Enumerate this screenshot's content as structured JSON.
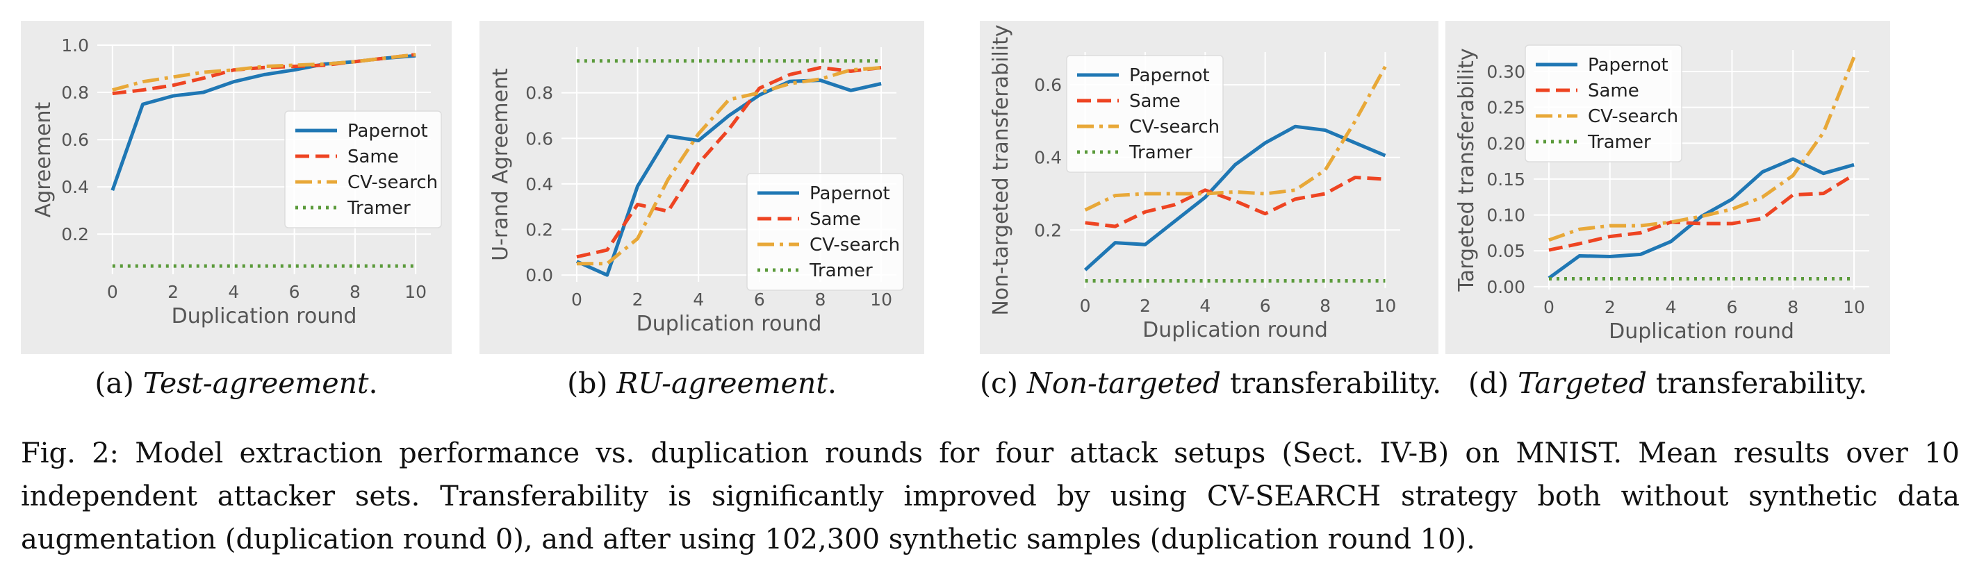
{
  "colors": {
    "panel_bg": "#ebebeb",
    "grid": "#ffffff",
    "text": "#555555",
    "Papernot": "#1f77b4",
    "Same": "#ee4422",
    "CV-search": "#e8a838",
    "Tramer": "#5a9a3a"
  },
  "captions": [
    {
      "letter": "(a)",
      "emph": "Test-agreement",
      "rest": "."
    },
    {
      "letter": "(b)",
      "emph": "RU-agreement",
      "rest": "."
    },
    {
      "letter": "(c)",
      "emph": "Non-targeted",
      "rest": " transferability."
    },
    {
      "letter": "(d)",
      "emph": "Targeted",
      "rest": " transferability."
    }
  ],
  "figure_caption": "Fig. 2: Model extraction performance vs. duplication rounds for four attack setups (Sect. IV-B) on MNIST. Mean results over 10 independent attacker sets. Transferability is significantly improved by using CV-SEARCH strategy both without synthetic data augmentation (duplication round 0), and after using 102,300 synthetic samples (duplication round 10).",
  "chart_data": [
    {
      "type": "line",
      "xlabel": "Duplication round",
      "ylabel": "Agreement",
      "x": [
        0,
        1,
        2,
        3,
        4,
        5,
        6,
        7,
        8,
        9,
        10
      ],
      "xticks": [
        0,
        2,
        4,
        6,
        8,
        10
      ],
      "xticklabels": [
        "0",
        "2",
        "4",
        "6",
        "8",
        "10"
      ],
      "yticks": [
        0.2,
        0.4,
        0.6,
        0.8,
        1.0
      ],
      "yticklabels": [
        "0.2",
        "0.4",
        "0.6",
        "0.8",
        "1.0"
      ],
      "xlim": [
        -0.5,
        10.5
      ],
      "ylim": [
        0.03,
        1.0
      ],
      "grid": true,
      "legend_position": "center-right",
      "series": [
        {
          "name": "Papernot",
          "style": "solid",
          "values": [
            0.385,
            0.75,
            0.785,
            0.8,
            0.845,
            0.875,
            0.895,
            0.92,
            0.93,
            0.945,
            0.955
          ]
        },
        {
          "name": "Same",
          "style": "dashed",
          "values": [
            0.795,
            0.81,
            0.83,
            0.86,
            0.895,
            0.905,
            0.91,
            0.915,
            0.93,
            0.945,
            0.96
          ]
        },
        {
          "name": "CV-search",
          "style": "dashdot",
          "values": [
            0.81,
            0.845,
            0.865,
            0.885,
            0.895,
            0.91,
            0.915,
            0.92,
            0.93,
            0.945,
            0.96
          ]
        },
        {
          "name": "Tramer",
          "style": "dotted",
          "values": [
            0.065,
            0.065,
            0.065,
            0.065,
            0.065,
            0.065,
            0.065,
            0.065,
            0.065,
            0.065,
            0.065
          ]
        }
      ]
    },
    {
      "type": "line",
      "xlabel": "Duplication round",
      "ylabel": "U-rand Agreement",
      "x": [
        0,
        1,
        2,
        3,
        4,
        5,
        6,
        7,
        8,
        9,
        10
      ],
      "xticks": [
        0,
        2,
        4,
        6,
        8,
        10
      ],
      "xticklabels": [
        "0",
        "2",
        "4",
        "6",
        "8",
        "10"
      ],
      "yticks": [
        0.0,
        0.2,
        0.4,
        0.6,
        0.8
      ],
      "yticklabels": [
        "0.0",
        "0.2",
        "0.4",
        "0.6",
        "0.8"
      ],
      "xlim": [
        -0.5,
        10.5
      ],
      "ylim": [
        -0.03,
        1.0
      ],
      "grid": true,
      "legend_position": "lower-right",
      "series": [
        {
          "name": "Papernot",
          "style": "solid",
          "values": [
            0.06,
            0.0,
            0.39,
            0.61,
            0.59,
            0.7,
            0.79,
            0.85,
            0.855,
            0.81,
            0.84
          ]
        },
        {
          "name": "Same",
          "style": "dashed",
          "values": [
            0.08,
            0.11,
            0.31,
            0.28,
            0.49,
            0.64,
            0.82,
            0.88,
            0.91,
            0.895,
            0.91
          ]
        },
        {
          "name": "CV-search",
          "style": "dashdot",
          "values": [
            0.05,
            0.05,
            0.16,
            0.42,
            0.62,
            0.77,
            0.8,
            0.84,
            0.86,
            0.9,
            0.91
          ]
        },
        {
          "name": "Tramer",
          "style": "dotted",
          "values": [
            0.94,
            0.94,
            0.94,
            0.94,
            0.94,
            0.94,
            0.94,
            0.94,
            0.94,
            0.94,
            0.94
          ]
        }
      ]
    },
    {
      "type": "line",
      "xlabel": "Duplication round",
      "ylabel": "Non-targeted transferability",
      "x": [
        0,
        1,
        2,
        3,
        4,
        5,
        6,
        7,
        8,
        9,
        10
      ],
      "xticks": [
        0,
        2,
        4,
        6,
        8,
        10
      ],
      "xticklabels": [
        "0",
        "2",
        "4",
        "6",
        "8",
        "10"
      ],
      "yticks": [
        0.2,
        0.4,
        0.6
      ],
      "yticklabels": [
        "0.2",
        "0.4",
        "0.6"
      ],
      "xlim": [
        -0.5,
        10.5
      ],
      "ylim": [
        0.04,
        0.69
      ],
      "grid": true,
      "legend_position": "upper-left",
      "series": [
        {
          "name": "Papernot",
          "style": "solid",
          "values": [
            0.09,
            0.165,
            0.16,
            0.225,
            0.29,
            0.38,
            0.44,
            0.485,
            0.475,
            0.44,
            0.405
          ]
        },
        {
          "name": "Same",
          "style": "dashed",
          "values": [
            0.22,
            0.21,
            0.25,
            0.27,
            0.31,
            0.28,
            0.245,
            0.285,
            0.3,
            0.345,
            0.34
          ]
        },
        {
          "name": "CV-search",
          "style": "dashdot",
          "values": [
            0.255,
            0.295,
            0.3,
            0.3,
            0.3,
            0.305,
            0.3,
            0.31,
            0.365,
            0.5,
            0.65
          ]
        },
        {
          "name": "Tramer",
          "style": "dotted",
          "values": [
            0.06,
            0.06,
            0.06,
            0.06,
            0.06,
            0.06,
            0.06,
            0.06,
            0.06,
            0.06,
            0.06
          ]
        }
      ]
    },
    {
      "type": "line",
      "xlabel": "Duplication round",
      "ylabel": "Targeted transferability",
      "x": [
        0,
        1,
        2,
        3,
        4,
        5,
        6,
        7,
        8,
        9,
        10
      ],
      "xticks": [
        0,
        2,
        4,
        6,
        8,
        10
      ],
      "xticklabels": [
        "0",
        "2",
        "4",
        "6",
        "8",
        "10"
      ],
      "yticks": [
        0.0,
        0.05,
        0.1,
        0.15,
        0.2,
        0.25,
        0.3
      ],
      "yticklabels": [
        "0.00",
        "0.05",
        "0.10",
        "0.15",
        "0.20",
        "0.25",
        "0.30"
      ],
      "xlim": [
        -0.5,
        10.5
      ],
      "ylim": [
        -0.004,
        0.33
      ],
      "grid": true,
      "legend_position": "upper-left",
      "series": [
        {
          "name": "Papernot",
          "style": "solid",
          "values": [
            0.012,
            0.043,
            0.042,
            0.045,
            0.063,
            0.098,
            0.122,
            0.16,
            0.178,
            0.158,
            0.17
          ]
        },
        {
          "name": "Same",
          "style": "dashed",
          "values": [
            0.051,
            0.06,
            0.07,
            0.075,
            0.09,
            0.088,
            0.088,
            0.095,
            0.128,
            0.13,
            0.156
          ]
        },
        {
          "name": "CV-search",
          "style": "dashdot",
          "values": [
            0.065,
            0.08,
            0.085,
            0.085,
            0.09,
            0.098,
            0.108,
            0.125,
            0.155,
            0.215,
            0.32
          ]
        },
        {
          "name": "Tramer",
          "style": "dotted",
          "values": [
            0.011,
            0.011,
            0.011,
            0.011,
            0.011,
            0.011,
            0.011,
            0.011,
            0.011,
            0.011,
            0.011
          ]
        }
      ]
    }
  ]
}
